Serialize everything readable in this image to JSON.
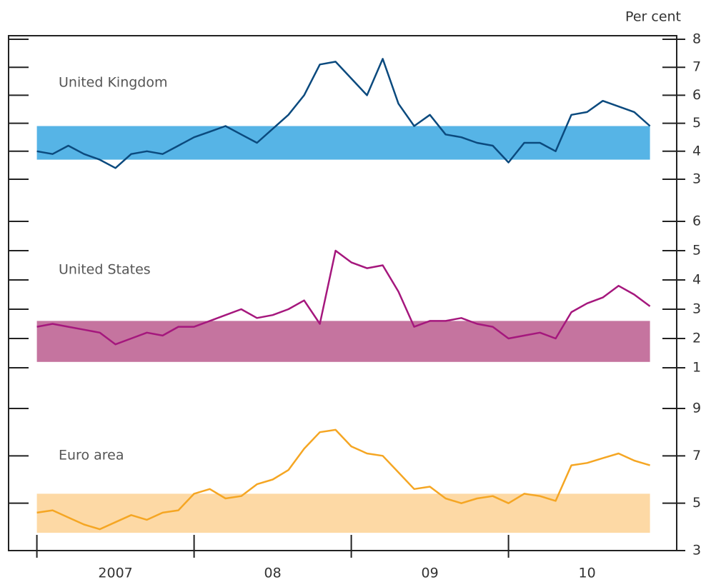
{
  "chart_data": [
    {
      "type": "line",
      "unit": "Per cent",
      "ylim": [
        3,
        8
      ],
      "yticks": [
        3,
        4,
        5,
        6,
        7,
        8
      ],
      "band": [
        3.7,
        4.9
      ],
      "band_color": "#56b4e6",
      "series": [
        {
          "name": "United Kingdom",
          "color": "#0b4a7e",
          "values": [
            4.0,
            3.9,
            4.2,
            3.9,
            3.7,
            3.4,
            3.9,
            4.0,
            3.9,
            4.2,
            4.5,
            4.7,
            4.9,
            4.6,
            4.3,
            4.8,
            5.3,
            6.0,
            7.1,
            7.2,
            6.6,
            6.0,
            7.3,
            5.7,
            4.9,
            5.3,
            4.6,
            4.5,
            4.3,
            4.2,
            3.6,
            4.3,
            4.3,
            4.0,
            5.3,
            5.4,
            5.8,
            5.6,
            5.4,
            4.9
          ]
        }
      ]
    },
    {
      "type": "line",
      "ylim": [
        1,
        6
      ],
      "yticks": [
        1,
        2,
        3,
        4,
        5,
        6
      ],
      "band": [
        1.2,
        2.6
      ],
      "band_color": "#c5749f",
      "series": [
        {
          "name": "United States",
          "color": "#a5177d",
          "values": [
            2.4,
            2.5,
            2.4,
            2.3,
            2.2,
            1.8,
            2.0,
            2.2,
            2.1,
            2.4,
            2.4,
            2.6,
            2.8,
            3.0,
            2.7,
            2.8,
            3.0,
            3.3,
            2.5,
            5.0,
            4.6,
            4.4,
            4.5,
            3.6,
            2.4,
            2.6,
            2.6,
            2.7,
            2.5,
            2.4,
            2.0,
            2.1,
            2.2,
            2.0,
            2.9,
            3.2,
            3.4,
            3.8,
            3.5,
            3.1
          ]
        }
      ]
    },
    {
      "type": "line",
      "ylim": [
        3,
        9
      ],
      "yticks": [
        3,
        5,
        7,
        9
      ],
      "band": [
        3.75,
        5.4
      ],
      "band_color": "#fdd9a5",
      "xlim": [
        2006.82,
        2011.07
      ],
      "xticks": [
        {
          "value": 2007.5,
          "label": "2007"
        },
        {
          "value": 2008.5,
          "label": "08"
        },
        {
          "value": 2009.5,
          "label": "09"
        },
        {
          "value": 2010.5,
          "label": "10"
        }
      ],
      "xtick_marks": [
        2007,
        2008,
        2009,
        2010
      ],
      "x": [
        2007,
        2007.1,
        2007.2,
        2007.3,
        2007.4,
        2007.5,
        2007.6,
        2007.7,
        2007.8,
        2007.9,
        2008,
        2008.1,
        2008.2,
        2008.3,
        2008.4,
        2008.5,
        2008.6,
        2008.7,
        2008.8,
        2008.9,
        2009,
        2009.1,
        2009.2,
        2009.3,
        2009.4,
        2009.5,
        2009.6,
        2009.7,
        2009.8,
        2009.9,
        2010,
        2010.1,
        2010.2,
        2010.3,
        2010.4,
        2010.5,
        2010.6,
        2010.7,
        2010.8,
        2010.9
      ],
      "series": [
        {
          "name": "Euro area",
          "color": "#f5a623",
          "values": [
            4.6,
            4.7,
            4.4,
            4.1,
            3.9,
            4.2,
            4.5,
            4.3,
            4.6,
            4.7,
            5.4,
            5.6,
            5.2,
            5.3,
            5.8,
            6.0,
            6.4,
            7.3,
            8.0,
            8.1,
            7.4,
            7.1,
            7.0,
            6.3,
            5.6,
            5.7,
            5.2,
            5.0,
            5.2,
            5.3,
            5.0,
            5.4,
            5.3,
            5.1,
            6.6,
            6.7,
            6.9,
            7.1,
            6.8,
            6.6
          ]
        }
      ]
    }
  ]
}
